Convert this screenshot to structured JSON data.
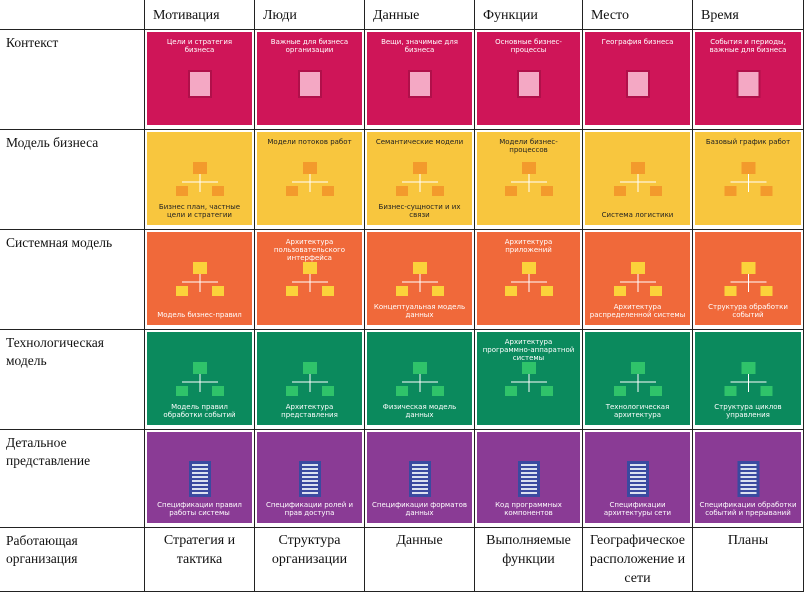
{
  "table": {
    "columns": [
      "Мотивация",
      "Люди",
      "Данные",
      "Функции",
      "Место",
      "Время"
    ],
    "rows": [
      {
        "label": "Контекст",
        "cells": [
          {
            "captions": [
              "Цели и стратегия бизнеса"
            ]
          },
          {
            "captions": [
              "Важные для бизнеса организации"
            ]
          },
          {
            "captions": [
              "Вещи, значимые для бизнеса"
            ]
          },
          {
            "captions": [
              "Основные бизнес-процессы"
            ]
          },
          {
            "captions": [
              "География бизнеса"
            ]
          },
          {
            "captions": [
              "События и периоды, важные для бизнеса"
            ]
          }
        ]
      },
      {
        "label": "Модель бизнеса",
        "cells": [
          {
            "captions": [
              "Бизнес план, частные цели и стратегии"
            ]
          },
          {
            "captions": [
              "Модели потоков работ"
            ]
          },
          {
            "captions": [
              "Семантические модели",
              "Бизнес-сущности и их связи"
            ]
          },
          {
            "captions": [
              "Модели бизнес-процессов"
            ]
          },
          {
            "captions": [
              "Система логистики"
            ]
          },
          {
            "captions": [
              "Базовый график работ"
            ]
          }
        ]
      },
      {
        "label": "Системная модель",
        "cells": [
          {
            "captions": [
              "Модель бизнес-правил"
            ]
          },
          {
            "captions": [
              "Архитектура пользовательского интерфейса"
            ]
          },
          {
            "captions": [
              "Концептуальная модель данных"
            ]
          },
          {
            "captions": [
              "Архитектура приложений"
            ]
          },
          {
            "captions": [
              "Архитектура распределенной системы"
            ]
          },
          {
            "captions": [
              "Структура обработки событий"
            ]
          }
        ]
      },
      {
        "label": "Технологическая модель",
        "cells": [
          {
            "captions": [
              "Модель правил обработки событий"
            ]
          },
          {
            "captions": [
              "Архитектура представления"
            ]
          },
          {
            "captions": [
              "Физическая модель данных"
            ]
          },
          {
            "captions": [
              "Архитектура программно-аппаратной системы"
            ]
          },
          {
            "captions": [
              "Технологическая архитектура"
            ]
          },
          {
            "captions": [
              "Структура циклов управления"
            ]
          }
        ]
      },
      {
        "label": "Детальное представление",
        "cells": [
          {
            "captions": [
              "Спецификации правил работы системы"
            ]
          },
          {
            "captions": [
              "Спецификации ролей и прав доступа"
            ]
          },
          {
            "captions": [
              "Спецификации форматов данных"
            ]
          },
          {
            "captions": [
              "Код программных компонентов"
            ]
          },
          {
            "captions": [
              "Спецификации архитектуры сети"
            ]
          },
          {
            "captions": [
              "Спецификации обработки событий и прерываний"
            ]
          }
        ]
      }
    ],
    "last_row": {
      "label": "Работающая организация",
      "cells": [
        "Стратегия и тактика",
        "Структура организации",
        "Данные",
        "Выполняемые функции",
        "Географическое расположение и сети",
        "Планы"
      ]
    }
  }
}
